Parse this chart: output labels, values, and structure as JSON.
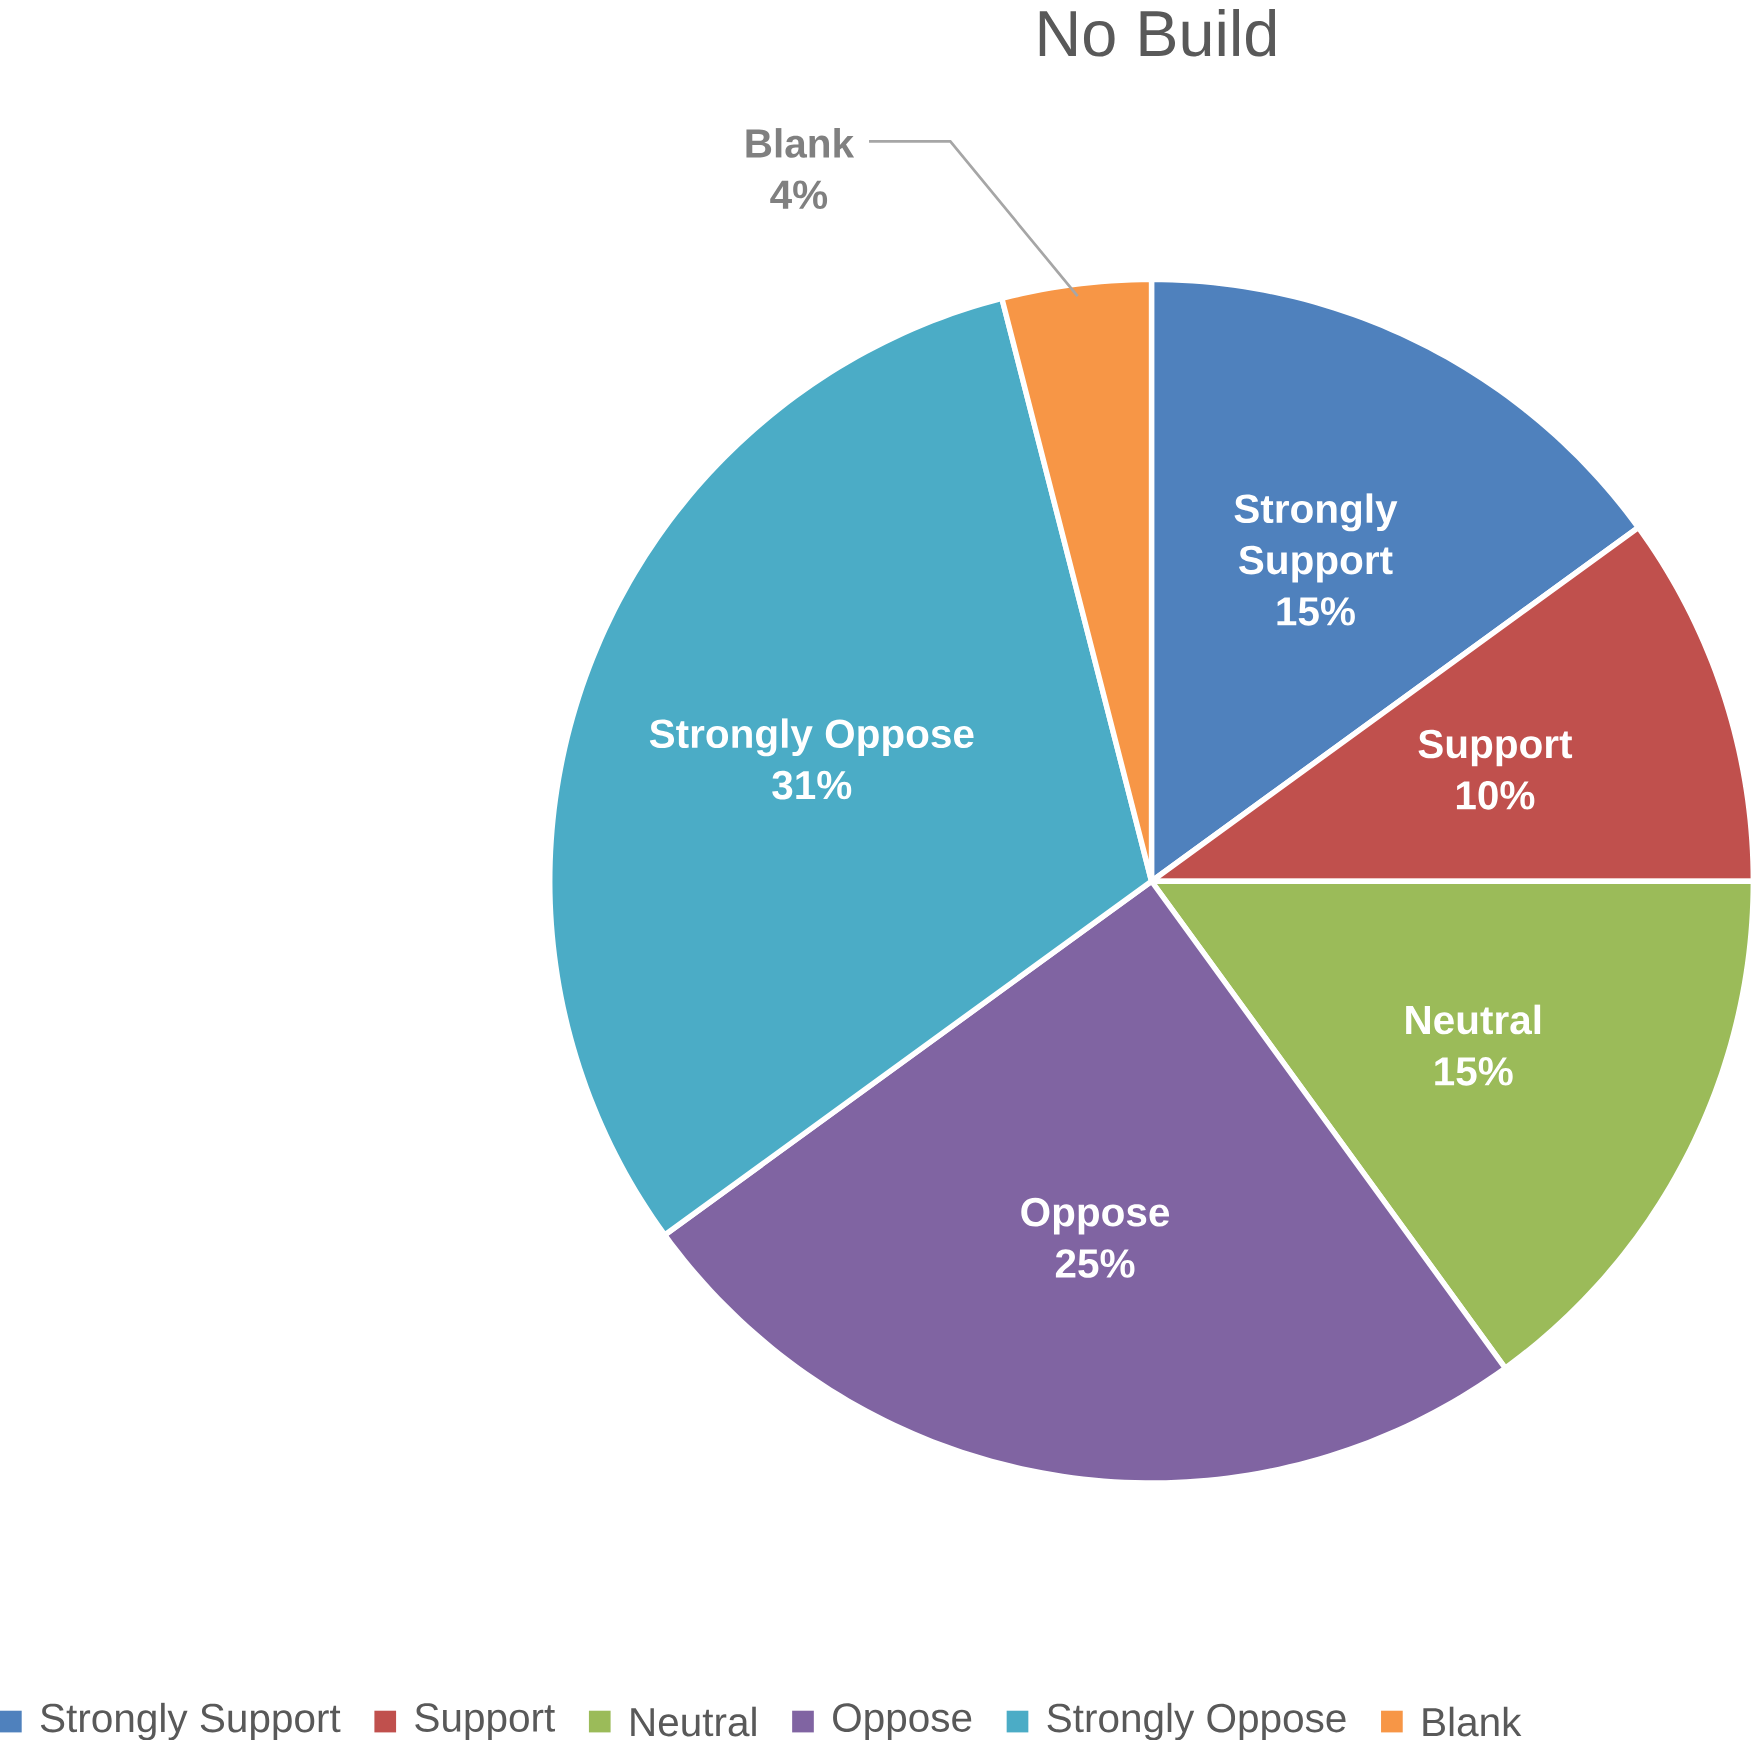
{
  "chart_data": {
    "type": "pie",
    "title": "No Build",
    "categories": [
      "Strongly Support",
      "Support",
      "Neutral",
      "Oppose",
      "Strongly Oppose",
      "Blank"
    ],
    "values": [
      15,
      10,
      15,
      25,
      31,
      4
    ],
    "value_labels": [
      "15%",
      "10%",
      "15%",
      "25%",
      "31%",
      "4%"
    ],
    "colors": [
      "#4f81bd",
      "#c0504d",
      "#9bbb59",
      "#8064a2",
      "#4bacc6",
      "#f79646"
    ],
    "legend": "bottom"
  }
}
